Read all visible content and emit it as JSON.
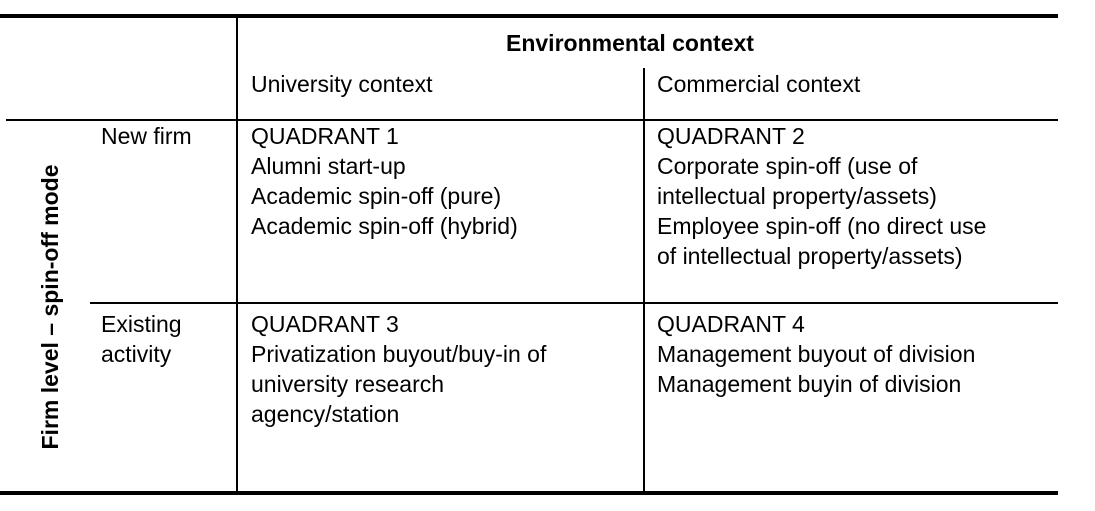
{
  "header": {
    "environmental_context": "Environmental context",
    "university_context": "University context",
    "commercial_context": "Commercial context"
  },
  "side": {
    "firm_level_label": "Firm level – spin-off mode",
    "new_firm": "New firm",
    "existing_activity": [
      "Existing",
      "activity"
    ]
  },
  "quadrants": [
    {
      "title": "QUADRANT 1",
      "lines": [
        "Alumni start-up",
        "Academic spin-off (pure)",
        "Academic spin-off (hybrid)"
      ]
    },
    {
      "title": "QUADRANT 2",
      "lines": [
        "Corporate spin-off (use of",
        "intellectual property/assets)",
        "Employee spin-off (no direct use",
        "of intellectual property/assets)"
      ]
    },
    {
      "title": "QUADRANT 3",
      "lines": [
        "Privatization buyout/buy-in of",
        "university research",
        "agency/station"
      ]
    },
    {
      "title": "QUADRANT 4",
      "lines": [
        "Management buyout of division",
        "Management buyin of division"
      ]
    }
  ]
}
